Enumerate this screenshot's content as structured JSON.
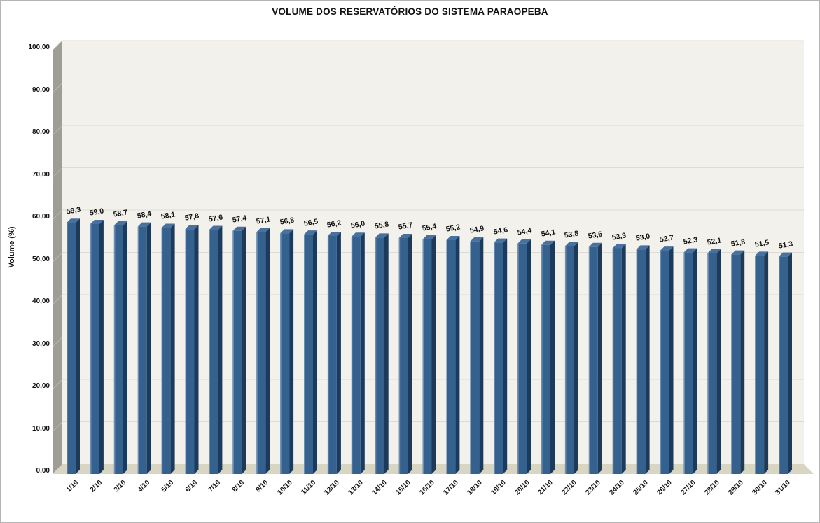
{
  "window": {
    "background": "#ffffff",
    "border_color": "#b5b5b5"
  },
  "chart_data": {
    "type": "bar",
    "style": "3d-column",
    "title": "VOLUME DOS RESERVATÓRIOS DO SISTEMA PARAOPEBA",
    "xlabel": "",
    "ylabel": "Volume (%)",
    "ylim": [
      0,
      100
    ],
    "grid": true,
    "legend": "none",
    "categories": [
      "1/10",
      "2/10",
      "3/10",
      "4/10",
      "5/10",
      "6/10",
      "7/10",
      "8/10",
      "9/10",
      "10/10",
      "11/10",
      "12/10",
      "13/10",
      "14/10",
      "15/10",
      "16/10",
      "17/10",
      "18/10",
      "19/10",
      "20/10",
      "21/10",
      "22/10",
      "23/10",
      "24/10",
      "25/10",
      "26/10",
      "27/10",
      "28/10",
      "29/10",
      "30/10",
      "31/10"
    ],
    "values": [
      59.3,
      59.0,
      58.7,
      58.4,
      58.1,
      57.8,
      57.6,
      57.4,
      57.1,
      56.8,
      56.5,
      56.2,
      56.0,
      55.8,
      55.7,
      55.4,
      55.2,
      54.9,
      54.6,
      54.4,
      54.1,
      53.8,
      53.6,
      53.3,
      53.0,
      52.7,
      52.3,
      52.1,
      51.8,
      51.5,
      51.3
    ],
    "value_labels": [
      "59,3",
      "59,0",
      "58,7",
      "58,4",
      "58,1",
      "57,8",
      "57,6",
      "57,4",
      "57,1",
      "56,8",
      "56,5",
      "56,2",
      "56,0",
      "55,8",
      "55,7",
      "55,4",
      "55,2",
      "54,9",
      "54,6",
      "54,4",
      "54,1",
      "53,8",
      "53,6",
      "53,3",
      "53,0",
      "52,7",
      "52,3",
      "52,1",
      "51,8",
      "51,5",
      "51,3"
    ],
    "yticks": [
      {
        "value": 0,
        "label": "0,00"
      },
      {
        "value": 10,
        "label": "10,00"
      },
      {
        "value": 20,
        "label": "20,00"
      },
      {
        "value": 30,
        "label": "30,00"
      },
      {
        "value": 40,
        "label": "40,00"
      },
      {
        "value": 50,
        "label": "50,00"
      },
      {
        "value": 60,
        "label": "60,00"
      },
      {
        "value": 70,
        "label": "70,00"
      },
      {
        "value": 80,
        "label": "80,00"
      },
      {
        "value": 90,
        "label": "90,00"
      },
      {
        "value": 100,
        "label": "100,00"
      }
    ],
    "colors": {
      "bar_front": "#35618f",
      "bar_side": "#1c3a5c",
      "bar_top": "#49719f",
      "bar_highlight": "rgba(255,255,255,0.28)",
      "back_wall": "#f3f1eb",
      "side_wall": "#9e9d96",
      "floor": "#d8d5c2",
      "gridline": "#dcdbd6",
      "gridline_on_wall": "#b9b8b1"
    }
  }
}
